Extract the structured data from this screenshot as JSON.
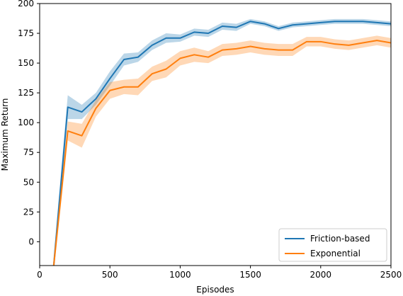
{
  "chart_data": {
    "type": "line",
    "xlabel": "Episodes",
    "ylabel": "Maximum Return",
    "xlim": [
      0,
      2500
    ],
    "ylim": [
      -20,
      200
    ],
    "xticks": [
      0,
      500,
      1000,
      1500,
      2000,
      2500
    ],
    "yticks": [
      0,
      25,
      50,
      75,
      100,
      125,
      150,
      175,
      200
    ],
    "legend_position": "lower-right",
    "grid": false,
    "x": [
      100,
      200,
      300,
      400,
      500,
      600,
      700,
      800,
      900,
      1000,
      1100,
      1200,
      1300,
      1400,
      1500,
      1600,
      1700,
      1800,
      1900,
      2000,
      2100,
      2200,
      2300,
      2400,
      2500
    ],
    "series": [
      {
        "name": "Friction-based",
        "color": "#1f77b4",
        "values": [
          -20,
          113,
          109,
          120,
          137,
          153,
          155,
          165,
          171,
          171,
          176,
          175,
          181,
          180,
          185,
          183,
          179,
          182,
          183,
          184,
          185,
          185,
          185,
          184,
          183
        ],
        "band": [
          8,
          10,
          6,
          5,
          6,
          5,
          4,
          4,
          4,
          3,
          3,
          3,
          3,
          3,
          2,
          2,
          2,
          2,
          2,
          2,
          2,
          2,
          2,
          2,
          2
        ]
      },
      {
        "name": "Exponential",
        "color": "#ff7f0e",
        "values": [
          -20,
          93,
          89,
          112,
          127,
          130,
          130,
          141,
          145,
          154,
          157,
          155,
          161,
          162,
          164,
          162,
          161,
          161,
          168,
          168,
          166,
          165,
          167,
          169,
          167
        ],
        "band": [
          6,
          8,
          10,
          7,
          7,
          6,
          7,
          6,
          7,
          6,
          6,
          5,
          5,
          5,
          5,
          5,
          5,
          5,
          4,
          4,
          4,
          4,
          4,
          4,
          4
        ]
      }
    ]
  }
}
